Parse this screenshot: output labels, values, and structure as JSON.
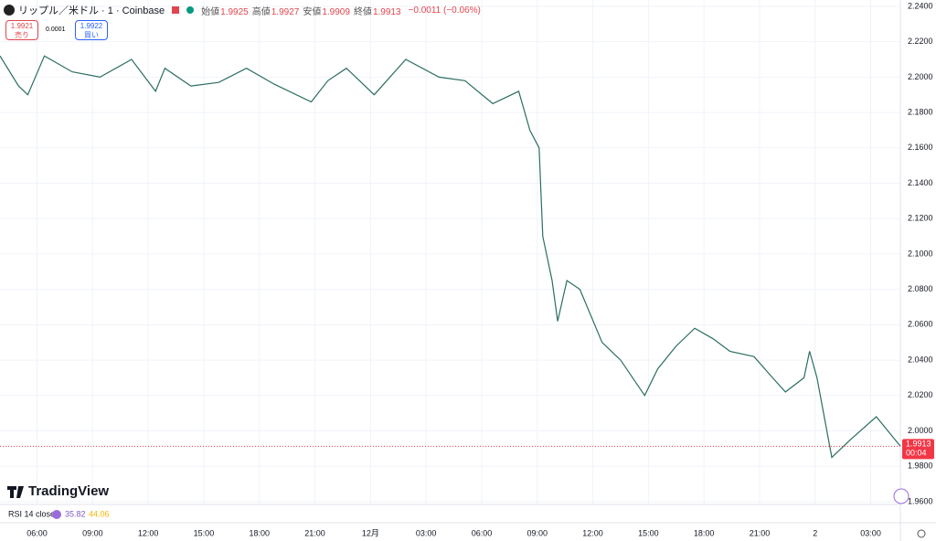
{
  "header": {
    "symbol": "リップル／米ドル · 1 · Coinbase",
    "ohlc": [
      {
        "label": "始値",
        "value": "1.9925"
      },
      {
        "label": "高値",
        "value": "1.9927"
      },
      {
        "label": "安値",
        "value": "1.9909"
      },
      {
        "label": "終値",
        "value": "1.9913"
      }
    ],
    "change": "−0.0011 (−0.06%)",
    "sell": {
      "price": "1.9921",
      "label": "売り"
    },
    "spread": "0.0001",
    "buy": {
      "price": "1.9922",
      "label": "買い"
    }
  },
  "chart_data": {
    "type": "line",
    "color": "#2b6e63",
    "x": [
      -2.0,
      -1.0,
      -0.5,
      0.4,
      1.9,
      3.4,
      5.1,
      6.4,
      6.9,
      8.3,
      9.8,
      11.3,
      12.8,
      14.8,
      15.7,
      16.7,
      18.2,
      19.9,
      21.7,
      23.1,
      24.6,
      26.0,
      26.6,
      27.1,
      27.3,
      27.8,
      28.1,
      28.6,
      29.3,
      30.5,
      31.5,
      32.8,
      33.5,
      34.5,
      35.5,
      36.5,
      37.4,
      38.7,
      39.7,
      40.4,
      41.4,
      41.7,
      42.1,
      42.9,
      43.9,
      45.3,
      46.6
    ],
    "values": [
      2.212,
      2.195,
      2.19,
      2.212,
      2.203,
      2.2,
      2.21,
      2.192,
      2.205,
      2.195,
      2.197,
      2.205,
      2.196,
      2.186,
      2.198,
      2.205,
      2.19,
      2.21,
      2.2,
      2.198,
      2.185,
      2.192,
      2.17,
      2.16,
      2.11,
      2.085,
      2.062,
      2.085,
      2.08,
      2.05,
      2.04,
      2.02,
      2.035,
      2.048,
      2.058,
      2.052,
      2.045,
      2.042,
      2.03,
      2.022,
      2.03,
      2.045,
      2.03,
      1.985,
      1.995,
      2.008,
      1.9913
    ],
    "xlim": [
      -2.0,
      46.6
    ],
    "ylim": [
      1.9584,
      2.2436
    ],
    "yticks": [
      {
        "value": 2.24,
        "label": "2.2400"
      },
      {
        "value": 2.22,
        "label": "2.2200"
      },
      {
        "value": 2.2,
        "label": "2.2000"
      },
      {
        "value": 2.18,
        "label": "2.1800"
      },
      {
        "value": 2.16,
        "label": "2.1600"
      },
      {
        "value": 2.14,
        "label": "2.1400"
      },
      {
        "value": 2.12,
        "label": "2.1200"
      },
      {
        "value": 2.1,
        "label": "2.1000"
      },
      {
        "value": 2.08,
        "label": "2.0800"
      },
      {
        "value": 2.06,
        "label": "2.0600"
      },
      {
        "value": 2.04,
        "label": "2.0400"
      },
      {
        "value": 2.02,
        "label": "2.0200"
      },
      {
        "value": 2.0,
        "label": "2.0000"
      },
      {
        "value": 1.98,
        "label": "1.9800"
      },
      {
        "value": 1.96,
        "label": "1.9600"
      }
    ],
    "xticks": [
      {
        "value": 0,
        "label": "06:00"
      },
      {
        "value": 3,
        "label": "09:00"
      },
      {
        "value": 6,
        "label": "12:00"
      },
      {
        "value": 9,
        "label": "15:00"
      },
      {
        "value": 12,
        "label": "18:00"
      },
      {
        "value": 15,
        "label": "21:00"
      },
      {
        "value": 18,
        "label": "12月"
      },
      {
        "value": 21,
        "label": "03:00"
      },
      {
        "value": 24,
        "label": "06:00"
      },
      {
        "value": 27,
        "label": "09:00"
      },
      {
        "value": 30,
        "label": "12:00"
      },
      {
        "value": 33,
        "label": "15:00"
      },
      {
        "value": 36,
        "label": "18:00"
      },
      {
        "value": 39,
        "label": "21:00"
      },
      {
        "value": 42,
        "label": "2"
      },
      {
        "value": 45,
        "label": "03:00"
      }
    ],
    "grid": true,
    "last_price": 1.9913,
    "countdown": "00:04"
  },
  "rsi": {
    "label": "RSI 14 close",
    "value": "35.82",
    "ma": "44.06"
  },
  "brand": "TradingView"
}
